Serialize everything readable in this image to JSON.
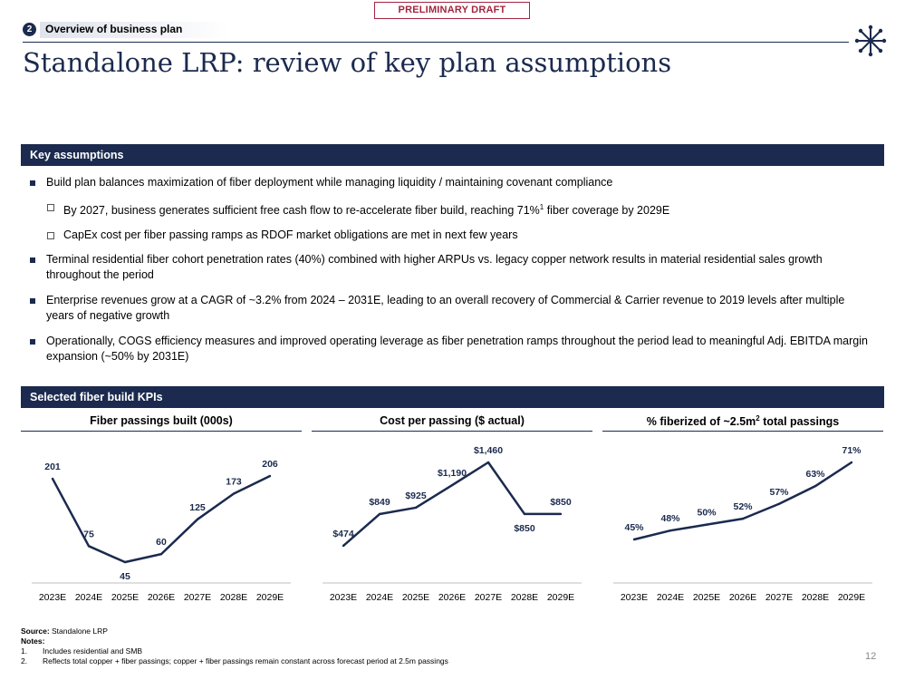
{
  "header": {
    "draft_label": "PRELIMINARY DRAFT",
    "section_number": "2",
    "section_title": "Overview of business plan",
    "title": "Standalone LRP: review of key plan assumptions"
  },
  "key_assumptions": {
    "heading": "Key assumptions",
    "bullet1": "Build plan balances maximization of fiber deployment while managing liquidity / maintaining covenant compliance",
    "sub1": {
      "before": "By 2027, business generates sufficient free cash flow to re-accelerate fiber build, reaching 71%",
      "sup": "1",
      "after": " fiber coverage by 2029E"
    },
    "sub2": "CapEx cost per fiber passing ramps as RDOF market obligations are met in next few years",
    "bullet2": "Terminal residential fiber cohort penetration rates (40%) combined with higher ARPUs vs. legacy copper network results in material residential sales growth throughout the period",
    "bullet3": "Enterprise revenues grow at a CAGR of ~3.2% from 2024 – 2031E, leading to an overall recovery of Commercial & Carrier revenue to 2019 levels after multiple years of negative growth",
    "bullet4": "Operationally, COGS efficiency measures and improved operating leverage as fiber penetration ramps throughout the period lead to meaningful Adj. EBITDA margin expansion (~50% by 2031E)"
  },
  "kpis": {
    "heading": "Selected fiber build KPIs",
    "chart1_title": "Fiber passings built (000s)",
    "chart2_title": "Cost per passing ($ actual)",
    "chart3_title_before": "% fiberized of ~2.5m",
    "chart3_title_sup": "2",
    "chart3_title_after": " total passings"
  },
  "chart_data": [
    {
      "type": "line",
      "title": "Fiber passings built (000s)",
      "x": [
        "2023E",
        "2024E",
        "2025E",
        "2026E",
        "2027E",
        "2028E",
        "2029E"
      ],
      "values": [
        201,
        75,
        45,
        60,
        125,
        173,
        206
      ],
      "labels": [
        "201",
        "75",
        "45",
        "60",
        "125",
        "173",
        "206"
      ],
      "ylim": [
        0,
        260
      ]
    },
    {
      "type": "line",
      "title": "Cost per passing ($ actual)",
      "x": [
        "2023E",
        "2024E",
        "2025E",
        "2026E",
        "2027E",
        "2028E",
        "2029E"
      ],
      "values": [
        474,
        849,
        925,
        1190,
        1460,
        850,
        850
      ],
      "labels": [
        "$474",
        "$849",
        "$925",
        "$1,190",
        "$1,460",
        "$850",
        "$850"
      ],
      "ylim": [
        0,
        1800
      ]
    },
    {
      "type": "line",
      "title": "% fiberized of ~2.5m total passings",
      "x": [
        "2023E",
        "2024E",
        "2025E",
        "2026E",
        "2027E",
        "2028E",
        "2029E"
      ],
      "values": [
        45,
        48,
        50,
        52,
        57,
        63,
        71
      ],
      "labels": [
        "45%",
        "48%",
        "50%",
        "52%",
        "57%",
        "63%",
        "71%"
      ],
      "ylim": [
        0,
        100
      ]
    }
  ],
  "footer": {
    "source_label": "Source:",
    "source_text": " Standalone LRP",
    "notes_label": "Notes:",
    "note1_num": "1.",
    "note1": "Includes residential and SMB",
    "note2_num": "2.",
    "note2": "Reflects total copper + fiber passings; copper + fiber passings remain constant across forecast period at 2.5m passings",
    "page_number": "12"
  },
  "colors": {
    "navy": "#1b2a4e",
    "draft_red": "#a3253f"
  }
}
